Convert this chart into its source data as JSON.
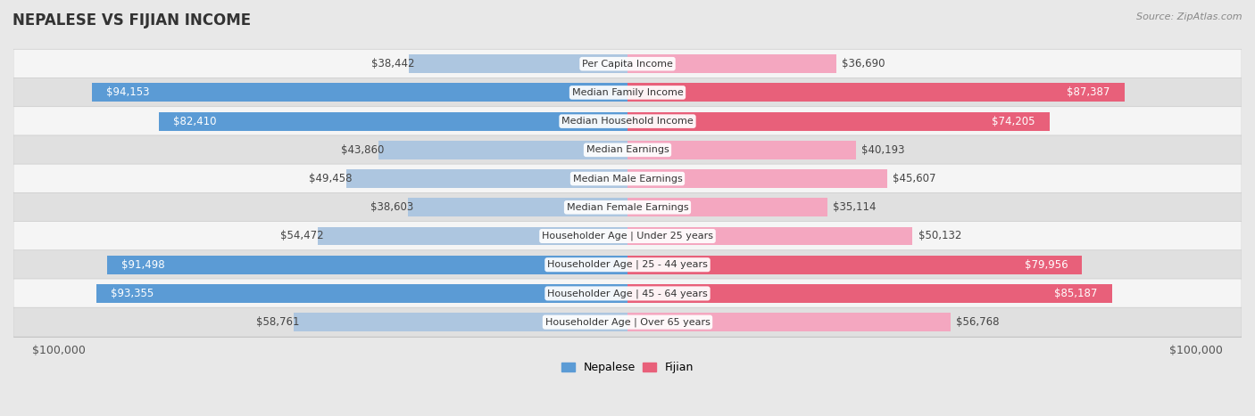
{
  "title": "NEPALESE VS FIJIAN INCOME",
  "source": "Source: ZipAtlas.com",
  "categories": [
    "Per Capita Income",
    "Median Family Income",
    "Median Household Income",
    "Median Earnings",
    "Median Male Earnings",
    "Median Female Earnings",
    "Householder Age | Under 25 years",
    "Householder Age | 25 - 44 years",
    "Householder Age | 45 - 64 years",
    "Householder Age | Over 65 years"
  ],
  "nepalese_values": [
    38442,
    94153,
    82410,
    43860,
    49458,
    38603,
    54472,
    91498,
    93355,
    58761
  ],
  "fijian_values": [
    36690,
    87387,
    74205,
    40193,
    45607,
    35114,
    50132,
    79956,
    85187,
    56768
  ],
  "nepalese_labels": [
    "$38,442",
    "$94,153",
    "$82,410",
    "$43,860",
    "$49,458",
    "$38,603",
    "$54,472",
    "$91,498",
    "$93,355",
    "$58,761"
  ],
  "fijian_labels": [
    "$36,690",
    "$87,387",
    "$74,205",
    "$40,193",
    "$45,607",
    "$35,114",
    "$50,132",
    "$79,956",
    "$85,187",
    "$56,768"
  ],
  "max_value": 100000,
  "nepalese_color_light": "#adc6e0",
  "nepalese_color_dark": "#5b9bd5",
  "fijian_color_light": "#f4a7c0",
  "fijian_color_dark": "#e8607a",
  "bg_color": "#e8e8e8",
  "row_bg_light": "#f5f5f5",
  "row_bg_dark": "#e0e0e0",
  "title_fontsize": 12,
  "axis_label": "$100,000",
  "legend_nepalese": "Nepalese",
  "legend_fijian": "Fijian",
  "nepalese_dark_threshold": 80000,
  "fijian_dark_threshold": 70000
}
